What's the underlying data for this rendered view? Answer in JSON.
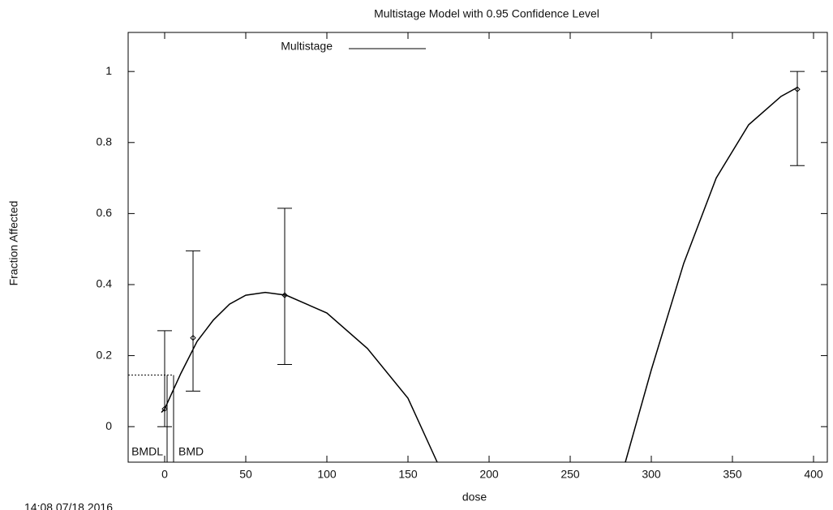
{
  "chart_data": {
    "type": "line",
    "title": "Multistage Model with 0.95 Confidence Level",
    "x_label": "dose",
    "y_label": "Fraction Affected",
    "xlim": [
      -22.5,
      408.5
    ],
    "ylim": [
      -0.1,
      1.11
    ],
    "xticks": [
      0,
      50,
      100,
      150,
      200,
      250,
      300,
      350,
      400
    ],
    "yticks": [
      0,
      0.2,
      0.4,
      0.6,
      0.8,
      1
    ],
    "legend": "top",
    "series": [
      {
        "name": "Multistage",
        "color": "#000000",
        "x": [
          -2,
          0,
          10,
          20,
          30,
          40,
          50,
          62,
          75,
          100,
          125,
          150,
          168,
          null,
          284,
          300,
          320,
          340,
          360,
          380,
          390
        ],
        "values": [
          0.04,
          0.05,
          0.15,
          0.24,
          0.3,
          0.345,
          0.37,
          0.378,
          0.37,
          0.32,
          0.22,
          0.08,
          -0.1,
          null,
          -0.1,
          0.16,
          0.46,
          0.7,
          0.85,
          0.93,
          0.955
        ]
      }
    ],
    "observed": {
      "color": "#000000",
      "x": [
        0,
        17.5,
        74,
        390
      ],
      "values": [
        0.05,
        0.25,
        0.37,
        0.95
      ],
      "lower": [
        0.0,
        0.1,
        0.175,
        0.735
      ],
      "upper": [
        0.27,
        0.495,
        0.615,
        1.0
      ]
    },
    "bmr": 0.145,
    "bmd_lines": [
      {
        "label": "BMDL",
        "x": 1.5
      },
      {
        "label": "BMD",
        "x": 5.5
      }
    ],
    "footer": "14:08 07/18 2016"
  }
}
